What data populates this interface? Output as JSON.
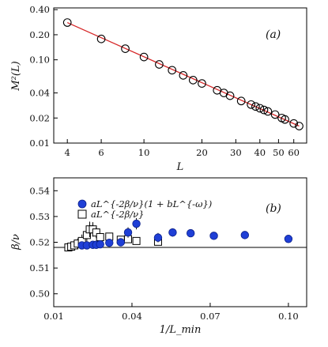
{
  "chart_data": [
    {
      "panel": "a",
      "type": "scatter",
      "panel_label": "(a)",
      "xlabel": "L",
      "ylabel": "M²(L)",
      "xscale": "log",
      "yscale": "log",
      "xlim": [
        3.4,
        70
      ],
      "ylim": [
        0.01,
        0.42
      ],
      "xticks": [
        4,
        6,
        10,
        20,
        30,
        40,
        50,
        60
      ],
      "xtick_labels": [
        "4",
        "6",
        "10",
        "20",
        "30",
        "40",
        "50",
        "60"
      ],
      "yticks": [
        0.01,
        0.02,
        0.04,
        0.1,
        0.2,
        0.4
      ],
      "ytick_labels": [
        "0.01",
        "0.02",
        "0.04",
        "0.10",
        "0.20",
        "0.40"
      ],
      "series": [
        {
          "marker": "open-circle",
          "x": [
            4,
            6,
            8,
            10,
            12,
            14,
            16,
            18,
            20,
            24,
            26,
            28,
            32,
            36,
            38,
            40,
            42,
            44,
            48,
            52,
            54,
            60,
            64
          ],
          "y": [
            0.28,
            0.178,
            0.136,
            0.108,
            0.088,
            0.075,
            0.065,
            0.057,
            0.052,
            0.043,
            0.04,
            0.037,
            0.032,
            0.029,
            0.0275,
            0.0262,
            0.025,
            0.024,
            0.022,
            0.02,
            0.0192,
            0.0172,
            0.016
          ]
        }
      ],
      "fit_line": {
        "x": [
          4,
          64
        ],
        "y": [
          0.28,
          0.016
        ],
        "color": "#d62728"
      }
    },
    {
      "panel": "b",
      "type": "scatter",
      "panel_label": "(b)",
      "xlabel": "1/L_min",
      "ylabel": "β/ν",
      "xlim": [
        0.01,
        0.107
      ],
      "ylim": [
        0.495,
        0.545
      ],
      "xticks": [
        0.01,
        0.04,
        0.07,
        0.1
      ],
      "xtick_labels": [
        "0.01",
        "0.04",
        "0.07",
        "0.10"
      ],
      "yticks": [
        0.5,
        0.51,
        0.52,
        0.53,
        0.54
      ],
      "ytick_labels": [
        "0.50",
        "0.51",
        "0.52",
        "0.53",
        "0.54"
      ],
      "reference_line": 0.518,
      "legend": {
        "placement": "top-left"
      },
      "series": [
        {
          "name": "aL^{-2β/ν}(1 + bL^{-ω})",
          "marker": "filled-circle",
          "color": "#1f3fd6",
          "x": [
            0.0208,
            0.0227,
            0.025,
            0.0263,
            0.0278,
            0.0313,
            0.0357,
            0.0385,
            0.0417,
            0.05,
            0.0556,
            0.0625,
            0.0714,
            0.0833,
            0.1
          ],
          "y": [
            0.5188,
            0.5188,
            0.519,
            0.519,
            0.5192,
            0.5198,
            0.52,
            0.5238,
            0.5272,
            0.5218,
            0.5238,
            0.5235,
            0.5225,
            0.5228,
            0.5213
          ],
          "err": [
            0.0012,
            0.0012,
            0.0012,
            0.0012,
            0.0015,
            0.0015,
            0.0015,
            0.002,
            0.0022,
            0.0018,
            0.0016,
            0.0015,
            0.0015,
            0.0013,
            0.0012
          ]
        },
        {
          "name": "aL^{-2β/ν}",
          "marker": "open-square",
          "x": [
            0.0156,
            0.0167,
            0.0179,
            0.0192,
            0.0208,
            0.0227,
            0.0238,
            0.025,
            0.0263,
            0.0278,
            0.0313,
            0.0357,
            0.0385,
            0.0417,
            0.05
          ],
          "y": [
            0.518,
            0.5183,
            0.5188,
            0.5195,
            0.5205,
            0.5228,
            0.525,
            0.525,
            0.5238,
            0.522,
            0.5222,
            0.521,
            0.5212,
            0.5205,
            0.5202
          ],
          "err": [
            0.0012,
            0.0013,
            0.0015,
            0.002,
            0.0025,
            0.003,
            0.003,
            0.0028,
            0.0022,
            0.0015,
            0.001,
            0.0008,
            0.0008,
            0.0006,
            0.0005
          ]
        }
      ]
    }
  ]
}
